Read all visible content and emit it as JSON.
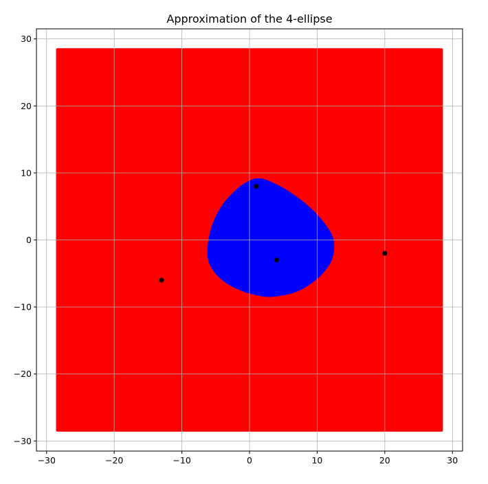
{
  "chart_data": {
    "type": "scatter",
    "title": "Approximation of the 4-ellipse",
    "xlabel": "",
    "ylabel": "",
    "xlim": [
      -31.5,
      31.5
    ],
    "ylim": [
      -31.5,
      31.5
    ],
    "xticks": [
      -30,
      -20,
      -10,
      0,
      10,
      20,
      30
    ],
    "yticks": [
      -30,
      -20,
      -10,
      0,
      10,
      20,
      30
    ],
    "xtick_labels": [
      "−30",
      "−20",
      "−10",
      "0",
      "10",
      "20",
      "30"
    ],
    "ytick_labels": [
      "−30",
      "−20",
      "−10",
      "0",
      "10",
      "20",
      "30"
    ],
    "grid": true,
    "background_region": {
      "x_range": [
        -28.6,
        28.6
      ],
      "y_range": [
        -28.6,
        28.6
      ],
      "color": "#ff0000"
    },
    "ellipse_region": {
      "color": "#0000ff",
      "boundary": [
        [
          1.5,
          9.2
        ],
        [
          4.0,
          8.3
        ],
        [
          6.5,
          6.8
        ],
        [
          9.0,
          4.8
        ],
        [
          11.0,
          2.6
        ],
        [
          12.4,
          0.2
        ],
        [
          12.3,
          -2.6
        ],
        [
          11.0,
          -4.8
        ],
        [
          9.0,
          -6.6
        ],
        [
          6.5,
          -7.9
        ],
        [
          3.0,
          -8.5
        ],
        [
          0.0,
          -8.0
        ],
        [
          -2.5,
          -7.0
        ],
        [
          -4.5,
          -5.6
        ],
        [
          -6.0,
          -3.4
        ],
        [
          -6.2,
          -1.0
        ],
        [
          -5.6,
          2.0
        ],
        [
          -4.3,
          4.8
        ],
        [
          -2.5,
          7.0
        ],
        [
          -0.5,
          8.6
        ]
      ]
    },
    "points": [
      {
        "x": 1,
        "y": 8
      },
      {
        "x": 4,
        "y": -3
      },
      {
        "x": 20,
        "y": -2
      },
      {
        "x": -13,
        "y": -6
      }
    ],
    "point_color": "#000000",
    "grid_color": "#b0b0b0"
  }
}
